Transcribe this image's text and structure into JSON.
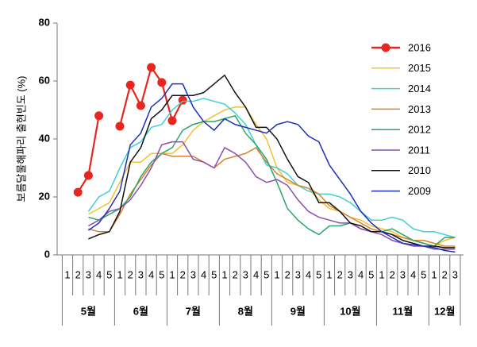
{
  "chart_data": {
    "type": "line",
    "ylabel": "보름달물해파리 출현빈도 (%)",
    "categories": [
      "1",
      "2",
      "3",
      "4",
      "5",
      "1",
      "2",
      "3",
      "4",
      "5",
      "1",
      "2",
      "3",
      "4",
      "5",
      "1",
      "2",
      "3",
      "4",
      "5",
      "1",
      "2",
      "3",
      "4",
      "5",
      "1",
      "2",
      "3",
      "4",
      "5",
      "1",
      "2",
      "3",
      "4",
      "5",
      "1",
      "2",
      "3"
    ],
    "groups": [
      "5월",
      "6월",
      "7월",
      "8월",
      "9월",
      "10월",
      "11월",
      "12월"
    ],
    "ylim": [
      0,
      80
    ],
    "yticks": [
      0,
      20,
      40,
      60,
      80
    ],
    "grid": false,
    "legend": "upper right",
    "series": [
      {
        "name": "2016",
        "color": "#e8261f",
        "marker": "circle",
        "values": [
          null,
          21.6,
          27.4,
          48,
          null,
          44.4,
          58.6,
          51.5,
          64.7,
          59.5,
          46.3,
          53.4,
          null,
          null,
          null,
          null,
          null,
          null,
          null,
          null,
          null,
          null,
          null,
          null,
          null,
          null,
          null,
          null,
          null,
          null,
          null,
          null,
          null,
          null,
          null,
          null,
          null,
          null
        ]
      },
      {
        "name": "2015",
        "color": "#f2c232",
        "values": [
          null,
          null,
          14,
          16,
          18,
          25,
          32,
          32,
          35,
          35,
          35,
          38,
          43,
          46,
          48,
          50,
          51,
          51,
          45,
          40,
          30,
          25,
          24,
          23,
          19,
          16,
          15,
          13,
          12,
          10,
          9,
          8,
          6,
          5,
          4,
          3,
          5,
          6
        ]
      },
      {
        "name": "2014",
        "color": "#3fd0d8",
        "values": [
          null,
          null,
          15,
          20,
          22,
          30,
          37,
          39,
          44,
          45,
          50,
          53,
          53,
          54,
          53,
          52,
          49,
          45,
          38,
          31,
          30,
          28,
          24,
          22,
          21,
          21,
          20,
          18,
          15,
          12,
          12,
          13,
          12,
          9,
          8,
          8,
          7,
          6
        ]
      },
      {
        "name": "2013",
        "color": "#d9822b",
        "values": [
          null,
          null,
          9,
          8,
          8,
          14,
          21,
          26,
          31,
          35,
          34,
          34,
          34,
          32,
          30,
          33,
          34,
          35,
          37,
          32,
          28,
          26,
          24,
          23,
          21,
          17,
          15,
          13,
          11,
          9,
          8,
          7,
          6,
          5,
          5,
          4,
          3,
          3
        ]
      },
      {
        "name": "2012",
        "color": "#27a66a",
        "values": [
          null,
          null,
          13,
          12,
          14,
          16,
          20,
          27,
          32,
          35,
          37,
          43,
          45,
          46,
          46,
          47,
          48,
          42,
          38,
          33,
          25,
          16,
          12,
          9,
          7,
          10,
          10,
          11,
          9,
          8,
          8,
          9,
          7,
          5,
          4,
          3,
          6,
          6
        ]
      },
      {
        "name": "2011",
        "color": "#8b4fad",
        "values": [
          null,
          null,
          10,
          12,
          15,
          16,
          19,
          24,
          30,
          38,
          39,
          39,
          33,
          32,
          30,
          37,
          35,
          32,
          27,
          25,
          26,
          24,
          19,
          15,
          13,
          12,
          11,
          11,
          9,
          8,
          7,
          5,
          4,
          3,
          3,
          2,
          2,
          2
        ]
      },
      {
        "name": "2010",
        "color": "#111111",
        "values": [
          null,
          null,
          5.5,
          7,
          8,
          15,
          32,
          37,
          47,
          50,
          55,
          55,
          55,
          56,
          59,
          62,
          56,
          51,
          44,
          44,
          40,
          33,
          27,
          25,
          18,
          18,
          15,
          11,
          10,
          8,
          8,
          7,
          5,
          4,
          3,
          3,
          2.5,
          2.5
        ]
      },
      {
        "name": "2009",
        "color": "#1f2fb8",
        "values": [
          null,
          null,
          8.5,
          11,
          16,
          22,
          38,
          42,
          51,
          54,
          59,
          59,
          51,
          46,
          43,
          47,
          45,
          44,
          43,
          42,
          45,
          46,
          45,
          41,
          39,
          31,
          26,
          21,
          15,
          11,
          8,
          6,
          4,
          3.5,
          3,
          2.5,
          1.5,
          1
        ]
      }
    ]
  }
}
